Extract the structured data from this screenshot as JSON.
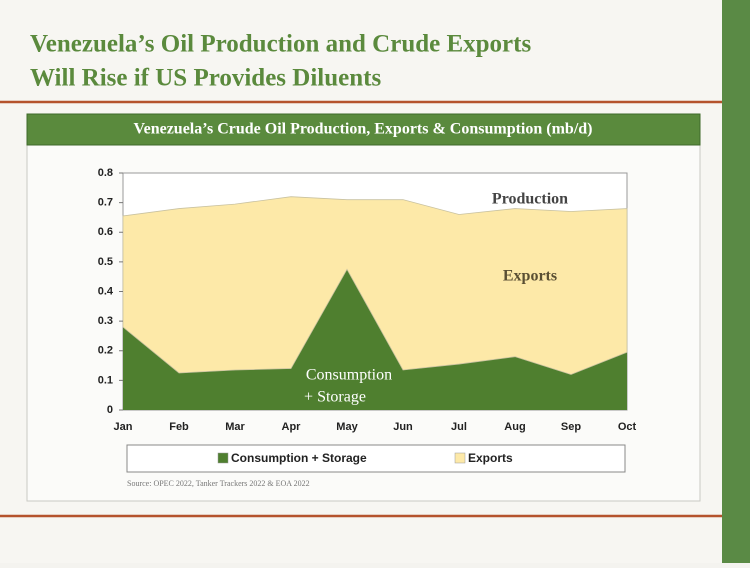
{
  "chart_data": {
    "type": "stacked_area",
    "slide_title_lines": [
      "Venezuela’s Oil Production and Crude Exports",
      "Will Rise if US Provides Diluents"
    ],
    "title": "Venezuela’s Crude Oil Production, Exports & Consumption (mb/d)",
    "categories": [
      "Jan",
      "Feb",
      "Mar",
      "Apr",
      "May",
      "Jun",
      "Jul",
      "Aug",
      "Sep",
      "Oct"
    ],
    "series": [
      {
        "name": "Consumption + Storage",
        "color": "#4f7f2f",
        "values": [
          0.28,
          0.125,
          0.135,
          0.14,
          0.475,
          0.135,
          0.155,
          0.18,
          0.12,
          0.195
        ]
      },
      {
        "name": "Exports",
        "color": "#fde9a8",
        "values": [
          0.375,
          0.555,
          0.56,
          0.58,
          0.235,
          0.575,
          0.505,
          0.5,
          0.55,
          0.485
        ]
      }
    ],
    "ylim": [
      0,
      0.8
    ],
    "yticks": [
      0,
      0.1,
      0.2,
      0.3,
      0.4,
      0.5,
      0.6,
      0.7,
      0.8
    ],
    "annotations": [
      "Production",
      "Exports",
      "Consumption",
      "+ Storage"
    ],
    "source": "Source: OPEC 2022, Tanker Trackers 2022 & EOA 2022"
  }
}
